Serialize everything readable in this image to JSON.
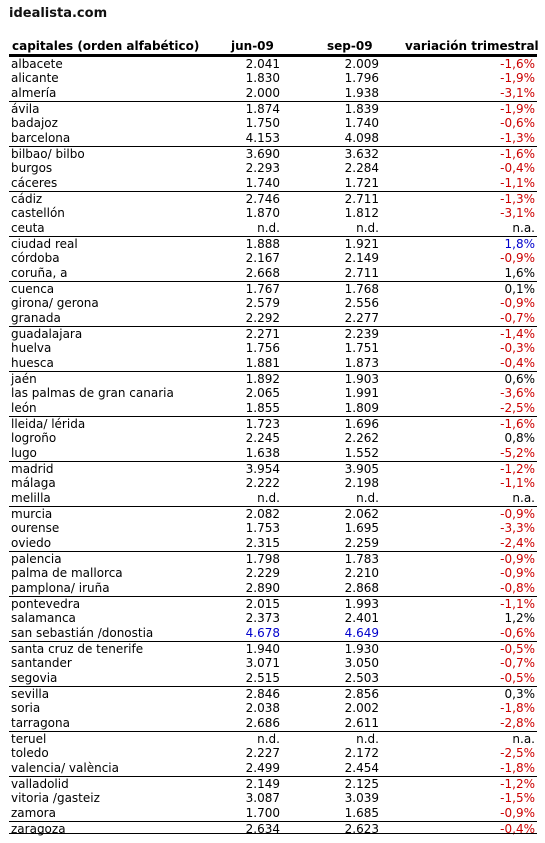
{
  "logo": "idealista.com",
  "header": {
    "col0": "capitales (orden alfabético)",
    "col1": "jun-09",
    "col2": "sep-09",
    "col3": "variación trimestral"
  },
  "colors": {
    "negative": "#cc0000",
    "highlight": "#0000cc",
    "neutral": "#000000"
  },
  "rows": [
    {
      "city": "albacete",
      "jun": "2.041",
      "sep": "2.009",
      "var": "-1,6%",
      "sep_first": true
    },
    {
      "city": "alicante",
      "jun": "1.830",
      "sep": "1.796",
      "var": "-1,9%"
    },
    {
      "city": "almería",
      "jun": "2.000",
      "sep": "1.938",
      "var": "-3,1%"
    },
    {
      "city": "ávila",
      "jun": "1.874",
      "sep": "1.839",
      "var": "-1,9%",
      "sep_first": true
    },
    {
      "city": "badajoz",
      "jun": "1.750",
      "sep": "1.740",
      "var": "-0,6%"
    },
    {
      "city": "barcelona",
      "jun": "4.153",
      "sep": "4.098",
      "var": "-1,3%"
    },
    {
      "city": "bilbao/ bilbo",
      "jun": "3.690",
      "sep": "3.632",
      "var": "-1,6%",
      "sep_first": true
    },
    {
      "city": "burgos",
      "jun": "2.293",
      "sep": "2.284",
      "var": "-0,4%"
    },
    {
      "city": "cáceres",
      "jun": "1.740",
      "sep": "1.721",
      "var": "-1,1%"
    },
    {
      "city": "cádiz",
      "jun": "2.746",
      "sep": "2.711",
      "var": "-1,3%",
      "sep_first": true
    },
    {
      "city": "castellón",
      "jun": "1.870",
      "sep": "1.812",
      "var": "-3,1%"
    },
    {
      "city": "ceuta",
      "jun": "n.d.",
      "sep": "n.d.",
      "var": "n.a."
    },
    {
      "city": "ciudad real",
      "jun": "1.888",
      "sep": "1.921",
      "var": "1,8%",
      "sep_first": true,
      "var_color": "highlight"
    },
    {
      "city": "córdoba",
      "jun": "2.167",
      "sep": "2.149",
      "var": "-0,9%"
    },
    {
      "city": "coruña, a",
      "jun": "2.668",
      "sep": "2.711",
      "var": "1,6%"
    },
    {
      "city": "cuenca",
      "jun": "1.767",
      "sep": "1.768",
      "var": "0,1%",
      "sep_first": true
    },
    {
      "city": "girona/ gerona",
      "jun": "2.579",
      "sep": "2.556",
      "var": "-0,9%"
    },
    {
      "city": "granada",
      "jun": "2.292",
      "sep": "2.277",
      "var": "-0,7%"
    },
    {
      "city": "guadalajara",
      "jun": "2.271",
      "sep": "2.239",
      "var": "-1,4%",
      "sep_first": true
    },
    {
      "city": "huelva",
      "jun": "1.756",
      "sep": "1.751",
      "var": "-0,3%"
    },
    {
      "city": "huesca",
      "jun": "1.881",
      "sep": "1.873",
      "var": "-0,4%"
    },
    {
      "city": "jaén",
      "jun": "1.892",
      "sep": "1.903",
      "var": "0,6%",
      "sep_first": true
    },
    {
      "city": "las palmas de gran canaria",
      "jun": "2.065",
      "sep": "1.991",
      "var": "-3,6%"
    },
    {
      "city": "león",
      "jun": "1.855",
      "sep": "1.809",
      "var": "-2,5%"
    },
    {
      "city": "lleida/ lérida",
      "jun": "1.723",
      "sep": "1.696",
      "var": "-1,6%",
      "sep_first": true
    },
    {
      "city": "logroño",
      "jun": "2.245",
      "sep": "2.262",
      "var": "0,8%"
    },
    {
      "city": "lugo",
      "jun": "1.638",
      "sep": "1.552",
      "var": "-5,2%"
    },
    {
      "city": "madrid",
      "jun": "3.954",
      "sep": "3.905",
      "var": "-1,2%",
      "sep_first": true
    },
    {
      "city": "málaga",
      "jun": "2.222",
      "sep": "2.198",
      "var": "-1,1%"
    },
    {
      "city": "melilla",
      "jun": "n.d.",
      "sep": "n.d.",
      "var": "n.a."
    },
    {
      "city": "murcia",
      "jun": "2.082",
      "sep": "2.062",
      "var": "-0,9%",
      "sep_first": true
    },
    {
      "city": "ourense",
      "jun": "1.753",
      "sep": "1.695",
      "var": "-3,3%"
    },
    {
      "city": "oviedo",
      "jun": "2.315",
      "sep": "2.259",
      "var": "-2,4%"
    },
    {
      "city": "palencia",
      "jun": "1.798",
      "sep": "1.783",
      "var": "-0,9%",
      "sep_first": true
    },
    {
      "city": "palma de mallorca",
      "jun": "2.229",
      "sep": "2.210",
      "var": "-0,9%"
    },
    {
      "city": "pamplona/ iruña",
      "jun": "2.890",
      "sep": "2.868",
      "var": "-0,8%"
    },
    {
      "city": "pontevedra",
      "jun": "2.015",
      "sep": "1.993",
      "var": "-1,1%",
      "sep_first": true
    },
    {
      "city": "salamanca",
      "jun": "2.373",
      "sep": "2.401",
      "var": "1,2%"
    },
    {
      "city": "san sebastián /donostia",
      "jun": "4.678",
      "sep": "4.649",
      "var": "-0,6%",
      "jun_color": "highlight",
      "sep_color": "highlight"
    },
    {
      "city": "santa cruz de tenerife",
      "jun": "1.940",
      "sep": "1.930",
      "var": "-0,5%",
      "sep_first": true
    },
    {
      "city": "santander",
      "jun": "3.071",
      "sep": "3.050",
      "var": "-0,7%"
    },
    {
      "city": "segovia",
      "jun": "2.515",
      "sep": "2.503",
      "var": "-0,5%"
    },
    {
      "city": "sevilla",
      "jun": "2.846",
      "sep": "2.856",
      "var": "0,3%",
      "sep_first": true
    },
    {
      "city": "soria",
      "jun": "2.038",
      "sep": "2.002",
      "var": "-1,8%"
    },
    {
      "city": "tarragona",
      "jun": "2.686",
      "sep": "2.611",
      "var": "-2,8%"
    },
    {
      "city": "teruel",
      "jun": "n.d.",
      "sep": "n.d.",
      "var": "n.a.",
      "sep_first": true
    },
    {
      "city": "toledo",
      "jun": "2.227",
      "sep": "2.172",
      "var": "-2,5%"
    },
    {
      "city": "valencia/ valència",
      "jun": "2.499",
      "sep": "2.454",
      "var": "-1,8%"
    },
    {
      "city": "valladolid",
      "jun": "2.149",
      "sep": "2.125",
      "var": "-1,2%",
      "sep_first": true
    },
    {
      "city": "vitoria /gasteiz",
      "jun": "3.087",
      "sep": "3.039",
      "var": "-1,5%"
    },
    {
      "city": "zamora",
      "jun": "1.700",
      "sep": "1.685",
      "var": "-0,9%"
    },
    {
      "city": "zaragoza",
      "jun": "2.634",
      "sep": "2.623",
      "var": "-0,4%",
      "sep_first": true
    }
  ]
}
